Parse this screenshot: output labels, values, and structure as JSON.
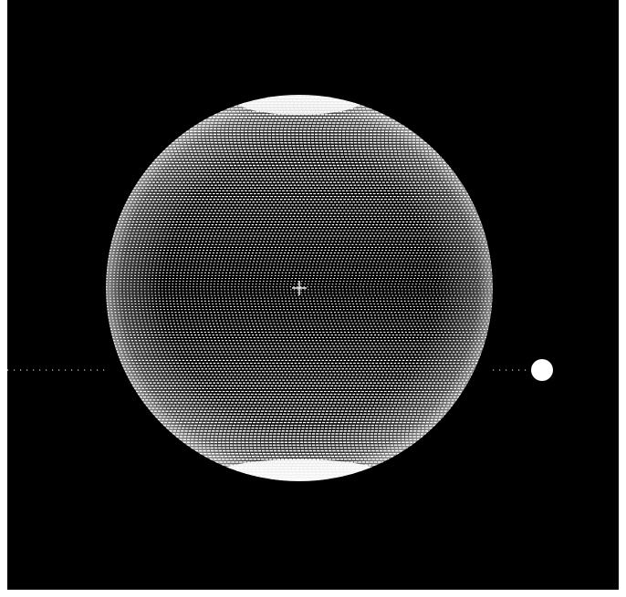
{
  "scene": {
    "background_color": "#000000",
    "page_color": "#ffffff",
    "dot_color": "#ffffff",
    "objects": [
      {
        "name": "planet-sphere",
        "kind": "dotted-sphere"
      },
      {
        "name": "moon",
        "kind": "solid-circle"
      },
      {
        "name": "orbit-path",
        "kind": "dotted-line"
      },
      {
        "name": "center-crosshair",
        "kind": "crosshair"
      }
    ]
  }
}
